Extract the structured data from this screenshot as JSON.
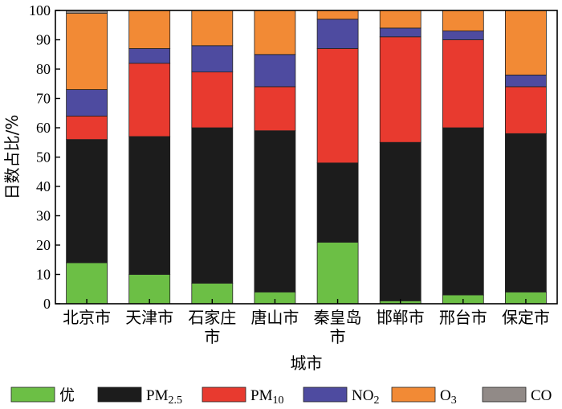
{
  "chart_data": {
    "type": "bar",
    "stacked": true,
    "title": "",
    "xlabel": "城市",
    "ylabel": "日数占比/%",
    "ylim": [
      0,
      100
    ],
    "yticks": [
      "0",
      "10",
      "20",
      "30",
      "40",
      "50",
      "60",
      "70",
      "80",
      "90",
      "100"
    ],
    "categories": [
      [
        "北京市"
      ],
      [
        "天津市"
      ],
      [
        "石家庄",
        "市"
      ],
      [
        "唐山市"
      ],
      [
        "秦皇岛",
        "市"
      ],
      [
        "邯郸市"
      ],
      [
        "邢台市"
      ],
      [
        "保定市"
      ]
    ],
    "series": [
      {
        "name": "优",
        "name_main": "优",
        "name_sub": "",
        "color": "#6cbf45",
        "values": [
          14,
          10,
          7,
          4,
          21,
          1,
          3,
          4
        ]
      },
      {
        "name": "PM2.5",
        "name_main": "PM",
        "name_sub": "2.5",
        "color": "#1c1c1c",
        "values": [
          42,
          47,
          53,
          55,
          27,
          54,
          57,
          54
        ]
      },
      {
        "name": "PM10",
        "name_main": "PM",
        "name_sub": "10",
        "color": "#e83a2f",
        "values": [
          8,
          25,
          19,
          15,
          39,
          36,
          30,
          16
        ]
      },
      {
        "name": "NO2",
        "name_main": "NO",
        "name_sub": "2",
        "color": "#4e4ba0",
        "values": [
          9,
          5,
          9,
          11,
          10,
          3,
          3,
          4
        ]
      },
      {
        "name": "O3",
        "name_main": "O",
        "name_sub": "3",
        "color": "#f28a35",
        "values": [
          26,
          13,
          12,
          15,
          3,
          6,
          7,
          22
        ]
      },
      {
        "name": "CO",
        "name_main": "CO",
        "name_sub": "",
        "color": "#918a87",
        "values": [
          1,
          0,
          0,
          0,
          0,
          0,
          0,
          0
        ]
      }
    ],
    "legend_position": "bottom",
    "grid": false
  }
}
